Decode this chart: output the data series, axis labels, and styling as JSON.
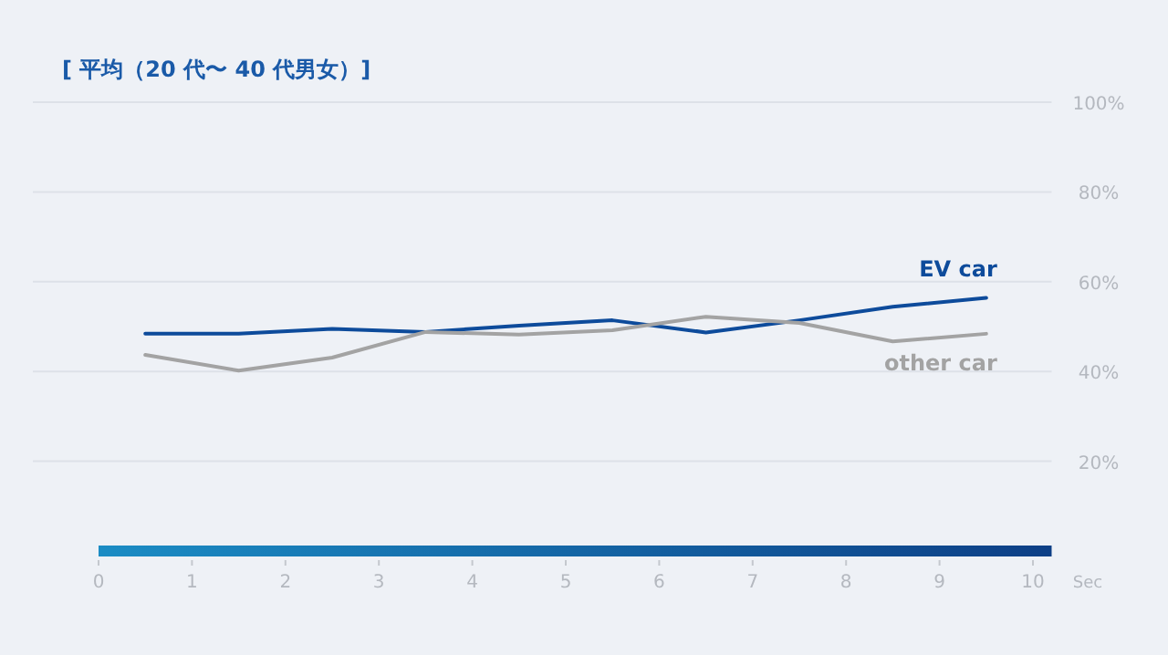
{
  "chart_data": {
    "type": "line",
    "title": "[ 平均（20 代〜 40 代男女）]",
    "xlabel": "Sec",
    "x": [
      0.5,
      1.5,
      2.5,
      3.5,
      4.5,
      5.5,
      6.5,
      7.5,
      8.5,
      9.5
    ],
    "series": [
      {
        "name": "EV car",
        "color": "#0d4b9b",
        "values": [
          48.4,
          48.4,
          49.5,
          48.8,
          50.2,
          51.4,
          48.7,
          51.4,
          54.4,
          56.4
        ]
      },
      {
        "name": "other car",
        "color": "#a3a3a3",
        "values": [
          43.7,
          40.2,
          43.1,
          48.8,
          48.2,
          49.2,
          52.2,
          50.8,
          46.7,
          48.4
        ]
      }
    ],
    "xlim": [
      0,
      10.2
    ],
    "xticks": [
      0,
      1,
      2,
      3,
      4,
      5,
      6,
      7,
      8,
      9,
      10
    ],
    "ylim": [
      0,
      100
    ],
    "yticks": [
      {
        "value": 20,
        "label": "20%"
      },
      {
        "value": 40,
        "label": "40%"
      },
      {
        "value": 60,
        "label": "60%"
      },
      {
        "value": 80,
        "label": "80%"
      },
      {
        "value": 100,
        "label": "100%"
      }
    ],
    "grid": "y",
    "line_style": "solid",
    "marker": "none"
  }
}
